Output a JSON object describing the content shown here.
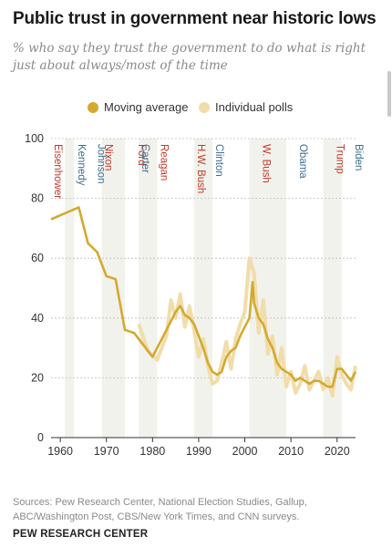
{
  "page": {
    "title": "Public trust in government near historic lows",
    "subtitle": "% who say they trust the government to do what is right just about always/most of the time",
    "source": "Sources: Pew Research Center, National Election Studies, Gallup, ABC/Washington Post, CBS/New York Times, and CNN surveys.",
    "brand": "PEW RESEARCH CENTER"
  },
  "legend": [
    {
      "label": "Moving average",
      "color": "#d4a930"
    },
    {
      "label": "Individual polls",
      "color": "#f0ddaa"
    }
  ],
  "chart_data": {
    "type": "line",
    "title": "Public trust in government near historic lows",
    "xlim": [
      1958,
      2024
    ],
    "ylim": [
      0,
      100
    ],
    "xticks": [
      1960,
      1970,
      1980,
      1990,
      2000,
      2010,
      2020
    ],
    "yticks": [
      0,
      20,
      40,
      60,
      80,
      100
    ],
    "legend_position": "top",
    "colors": {
      "line": "#d4a930",
      "polls": "#f0ddaa",
      "band": "#f2f2ec",
      "republican": "#c0392b",
      "democrat": "#3c6e91"
    },
    "series": [
      {
        "name": "Moving average",
        "x": [
          1958,
          1964,
          1966,
          1968,
          1970,
          1972,
          1974,
          1976,
          1977,
          1978,
          1979,
          1980,
          1982,
          1984,
          1985,
          1986,
          1987,
          1988,
          1989,
          1990,
          1991,
          1992,
          1993,
          1994,
          1995,
          1996,
          1997,
          1998,
          1999,
          2000,
          2001,
          2001.7,
          2002,
          2003,
          2004,
          2005,
          2006,
          2007,
          2008,
          2009,
          2010,
          2011,
          2012,
          2013,
          2014,
          2015,
          2016,
          2017,
          2018,
          2019,
          2020,
          2021,
          2022,
          2023,
          2024
        ],
        "y": [
          73,
          77,
          65,
          62,
          54,
          53,
          36,
          35,
          33,
          31,
          29,
          27,
          33,
          39,
          42,
          44,
          41,
          40,
          38,
          34,
          30,
          25,
          22,
          21,
          22,
          27,
          29,
          30,
          34,
          37,
          40,
          52,
          45,
          40,
          38,
          33,
          30,
          25,
          23,
          22,
          21,
          19,
          20,
          19,
          18,
          19,
          19,
          18,
          17,
          17,
          23,
          23,
          21,
          19,
          22
        ]
      },
      {
        "name": "Individual polls",
        "x": [
          1977,
          1979,
          1981,
          1983,
          1984,
          1985,
          1986,
          1987,
          1988,
          1989,
          1990,
          1991,
          1992,
          1993,
          1994,
          1995,
          1996,
          1997,
          1998,
          1999,
          2000,
          2001,
          2002,
          2003,
          2004,
          2005,
          2006,
          2007,
          2008,
          2009,
          2010,
          2011,
          2012,
          2013,
          2014,
          2015,
          2016,
          2017,
          2018,
          2019,
          2020,
          2021,
          2022,
          2023,
          2024
        ],
        "y": [
          38,
          29,
          26,
          34,
          46,
          40,
          48,
          37,
          44,
          36,
          27,
          33,
          24,
          18,
          19,
          25,
          32,
          23,
          33,
          38,
          42,
          60,
          55,
          35,
          46,
          28,
          34,
          21,
          30,
          17,
          22,
          15,
          18,
          24,
          16,
          19,
          22,
          16,
          20,
          14,
          27,
          21,
          18,
          16,
          24
        ]
      }
    ],
    "presidents": [
      {
        "name": "Eisenhower",
        "start": 1953,
        "end": 1961,
        "party": "R",
        "offset": 0
      },
      {
        "name": "Kennedy",
        "start": 1961,
        "end": 1963,
        "party": "D",
        "offset": 1
      },
      {
        "name": "Johnson",
        "start": 1963,
        "end": 1969,
        "party": "D",
        "offset": 2
      },
      {
        "name": "Nixon",
        "start": 1969,
        "end": 1974,
        "party": "R",
        "offset": 0
      },
      {
        "name": "Ford",
        "start": 1974,
        "end": 1977,
        "party": "R",
        "offset": 1
      },
      {
        "name": "Carter",
        "start": 1977,
        "end": 1981,
        "party": "D",
        "offset": 0
      },
      {
        "name": "Reagan",
        "start": 1981,
        "end": 1989,
        "party": "R",
        "offset": 0
      },
      {
        "name": "H.W. Bush",
        "start": 1989,
        "end": 1993,
        "party": "R",
        "offset": 0
      },
      {
        "name": "Clinton",
        "start": 1993,
        "end": 2001,
        "party": "D",
        "offset": 0
      },
      {
        "name": "W. Bush",
        "start": 2001,
        "end": 2009,
        "party": "R",
        "offset": 1
      },
      {
        "name": "Obama",
        "start": 2009,
        "end": 2017,
        "party": "D",
        "offset": 1
      },
      {
        "name": "Trump",
        "start": 2017,
        "end": 2021,
        "party": "R",
        "offset": 1
      },
      {
        "name": "Biden",
        "start": 2021,
        "end": 2024,
        "party": "D",
        "offset": 1
      }
    ]
  }
}
